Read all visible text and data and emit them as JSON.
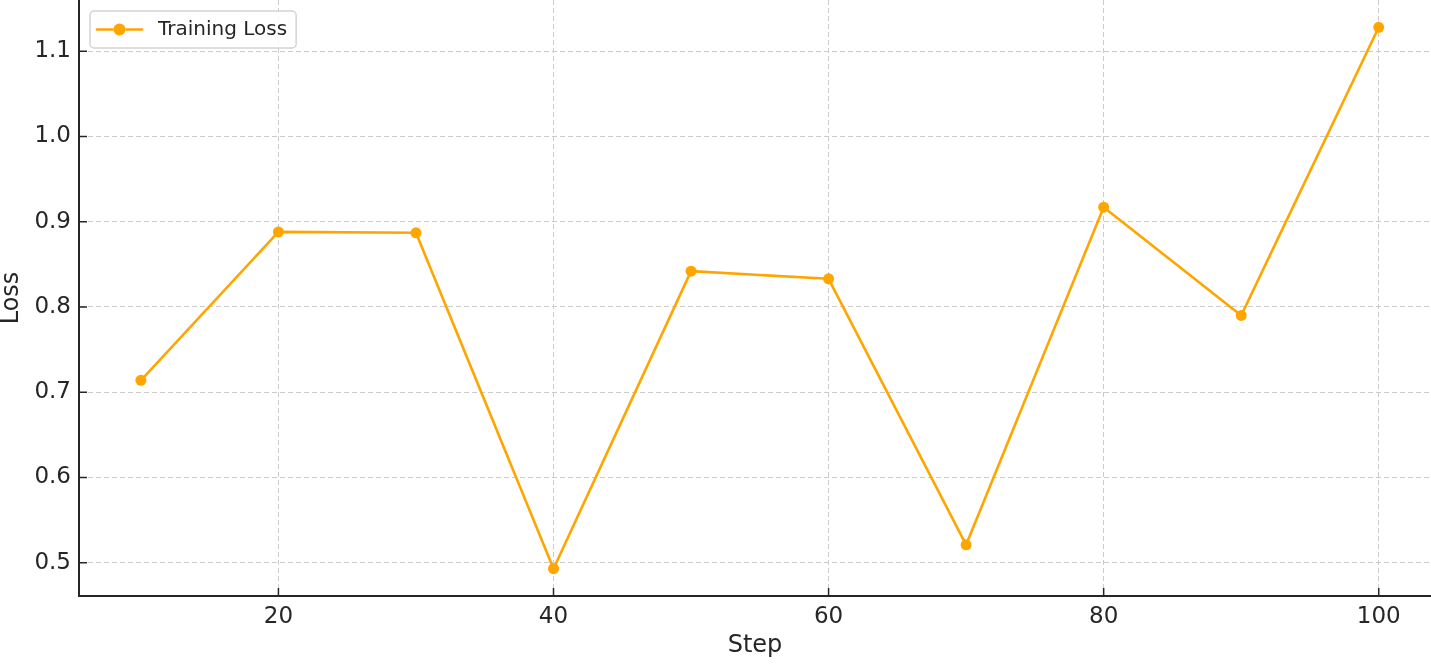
{
  "chart_data": {
    "type": "line",
    "xlabel": "Step",
    "ylabel": "Loss",
    "x": [
      10,
      20,
      30,
      40,
      50,
      60,
      70,
      80,
      90,
      100
    ],
    "series": [
      {
        "name": "Training Loss",
        "color": "#ffa500",
        "values": [
          0.714,
          0.888,
          0.887,
          0.493,
          0.842,
          0.833,
          0.521,
          0.917,
          0.79,
          1.128
        ]
      }
    ],
    "xlim": [
      5.5,
      103.8
    ],
    "ylim": [
      0.461,
      1.16
    ],
    "xticks": [
      20,
      40,
      60,
      80,
      100
    ],
    "yticks": [
      0.5,
      0.6,
      0.7,
      0.8,
      0.9,
      {
        "value": 1,
        "label": "1.0"
      },
      1.1
    ],
    "grid": true,
    "legend": "top left",
    "marker": "circle",
    "line_style": "solid"
  }
}
